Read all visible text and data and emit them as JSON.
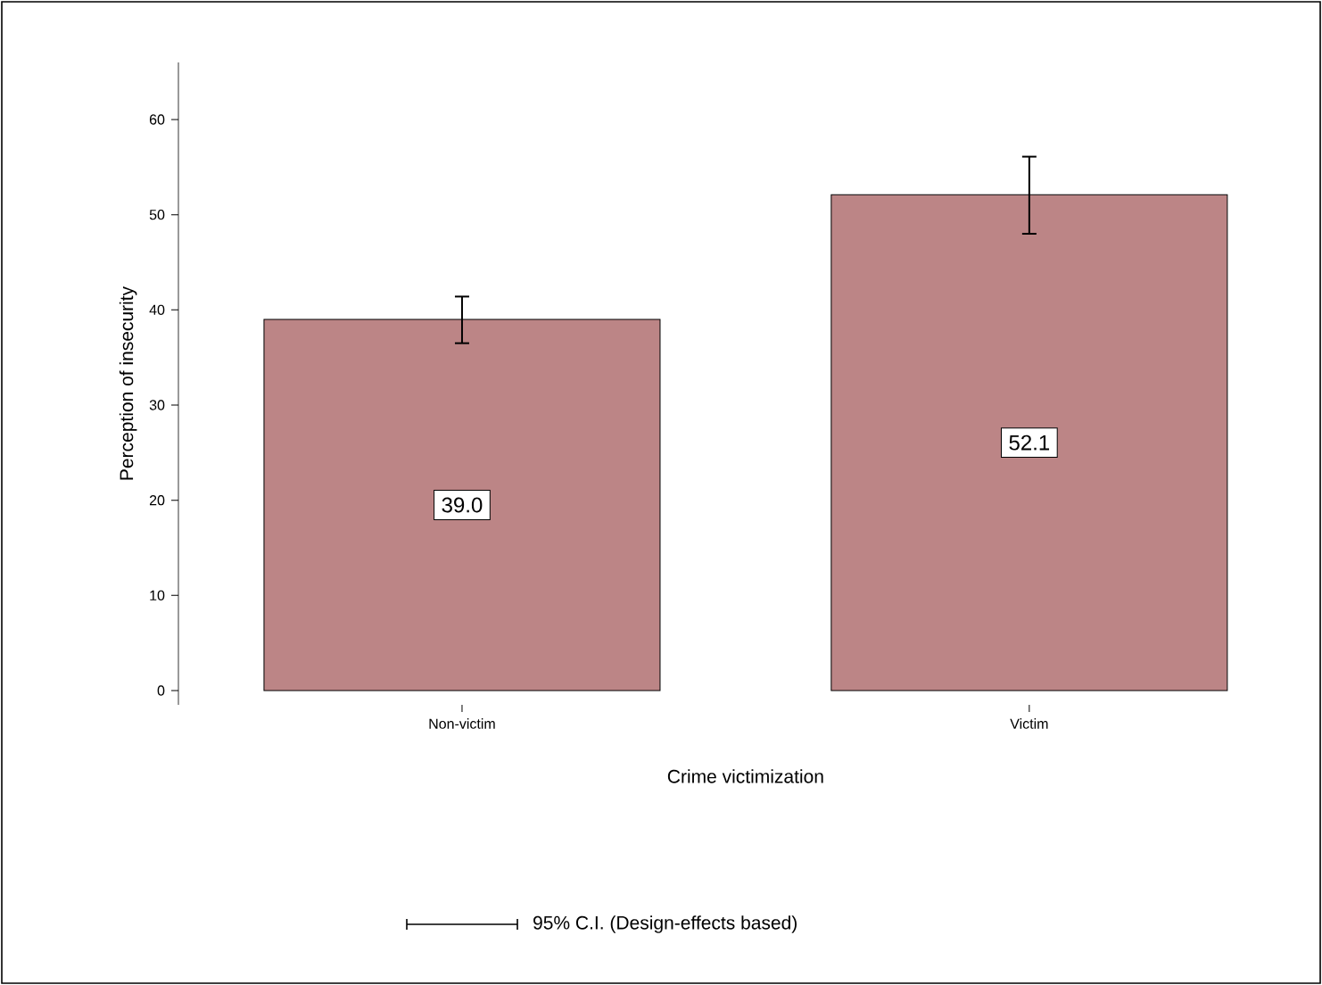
{
  "chart_data": {
    "type": "bar",
    "xlabel": "Crime victimization",
    "ylabel": "Perception of insecurity",
    "categories": [
      "Non-victim",
      "Victim"
    ],
    "values": [
      39.0,
      52.1
    ],
    "errors": [
      [
        36.5,
        41.4
      ],
      [
        48.0,
        56.1
      ]
    ],
    "color": "#bc8586",
    "ylim": [
      -1.5,
      66
    ],
    "yticks": [
      0,
      10,
      20,
      30,
      40,
      50,
      60
    ],
    "value_labels": [
      "39.0",
      "52.1"
    ],
    "annotations": [
      "95% C.I. (Design-effects based)"
    ]
  }
}
